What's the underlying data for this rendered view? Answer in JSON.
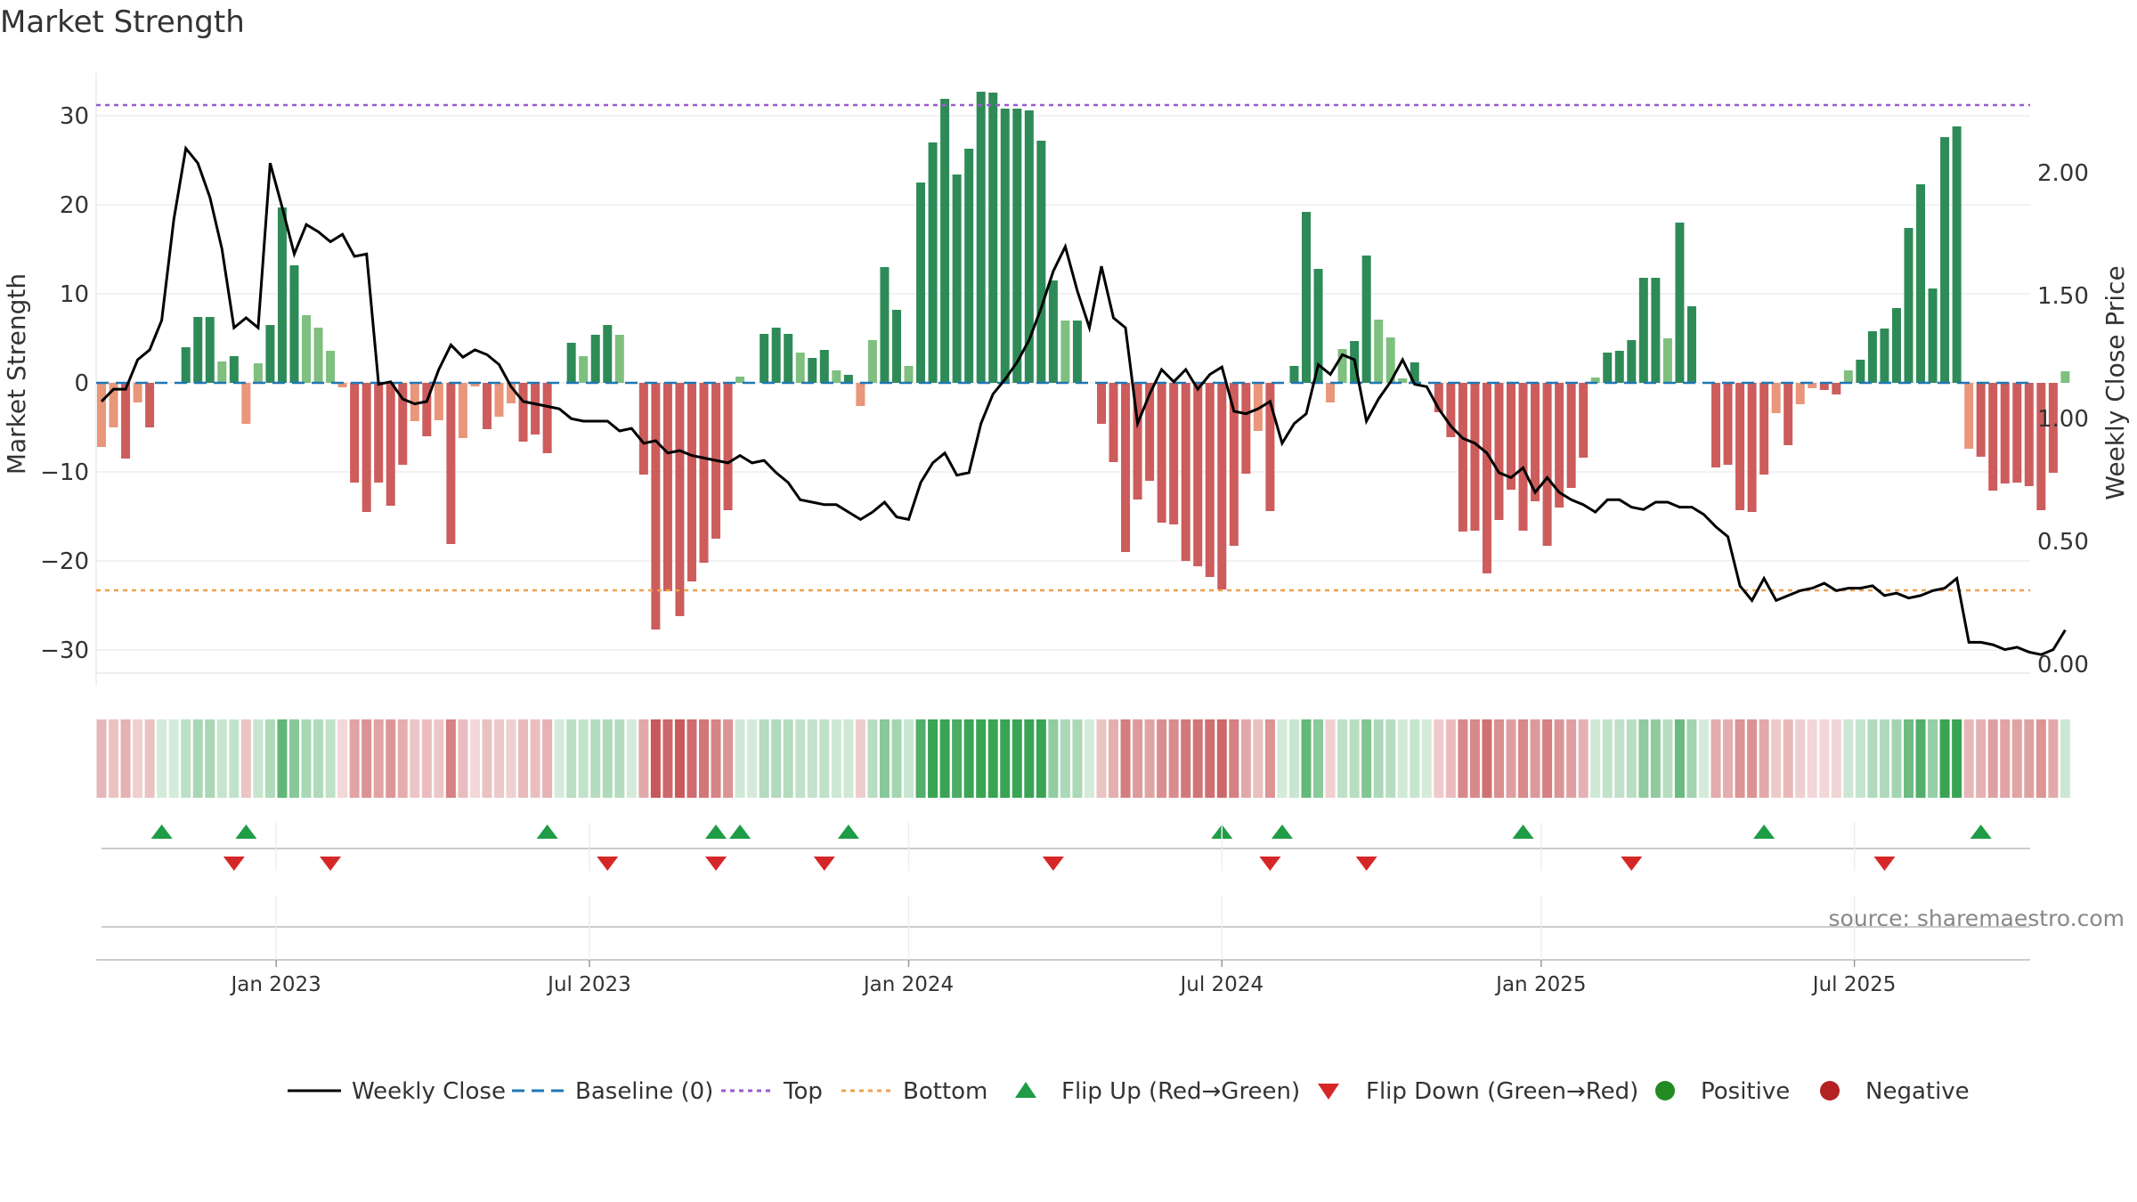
{
  "chart_data": {
    "type": "bar",
    "title": "Market Strength",
    "ylabel_left": "Market Strength",
    "ylabel_right": "Weekly Close Price",
    "left_ylim": [
      -33,
      36
    ],
    "right_ylim": [
      -0.05,
      2.45
    ],
    "left_ticks": [
      30,
      20,
      10,
      0,
      -10,
      -20,
      -30
    ],
    "left_tick_labels": [
      "30",
      "20",
      "10",
      "0",
      "−10",
      "−20",
      "−30"
    ],
    "right_ticks": [
      2.0,
      1.5,
      1.0,
      0.5,
      0.0
    ],
    "right_tick_labels": [
      "2.00",
      "1.50",
      "1.00",
      "0.50",
      "0.00"
    ],
    "x_tick_labels": [
      "Jan 2023",
      "Jul 2023",
      "Jan 2024",
      "Jul 2024",
      "Jan 2025",
      "Jul 2025"
    ],
    "x_tick_weeks": [
      14.5,
      40.5,
      67,
      93,
      119.5,
      145.5
    ],
    "top_level": 31.2,
    "bottom_level": -23.3,
    "strength": [
      -7.2,
      -5,
      -8.5,
      -2.2,
      -5,
      0,
      0,
      4,
      7.4,
      7.4,
      2.4,
      3,
      -4.6,
      2.2,
      6.5,
      19.7,
      13.2,
      7.6,
      6.2,
      3.6,
      -0.5,
      -11.2,
      -14.5,
      -11.2,
      -13.8,
      -9.2,
      -4.3,
      -6,
      -4.2,
      -18.1,
      -6.2,
      -0.4,
      -5.2,
      -3.8,
      -2.3,
      -6.6,
      -5.8,
      -7.9,
      0,
      4.5,
      3,
      5.4,
      6.5,
      5.4,
      0,
      -10.3,
      -27.7,
      -23.4,
      -26.2,
      -22.3,
      -20.2,
      -17.5,
      -14.3,
      0.7,
      0,
      5.5,
      6.2,
      5.5,
      3.4,
      2.8,
      3.7,
      1.4,
      0.9,
      -2.6,
      4.8,
      13,
      8.2,
      1.9,
      22.5,
      27,
      31.9,
      23.4,
      26.3,
      32.7,
      32.6,
      30.8,
      30.8,
      30.6,
      27.2,
      11.5,
      7,
      7,
      0,
      -4.6,
      -8.9,
      -19,
      -13.1,
      -11,
      -15.7,
      -15.9,
      -20,
      -20.6,
      -21.8,
      -23.2,
      -18.3,
      -10.2,
      -5.4,
      -14.4,
      0,
      1.9,
      19.2,
      12.8,
      -2.2,
      3.8,
      4.7,
      14.3,
      7.1,
      5.1,
      0.5,
      2.3,
      0,
      -3.3,
      -6.1,
      -16.7,
      -16.6,
      -21.4,
      -15.4,
      -12,
      -16.6,
      -13.3,
      -18.3,
      -14,
      -11.8,
      -8.4,
      0.6,
      3.4,
      3.6,
      4.8,
      11.8,
      11.8,
      5,
      18,
      8.6,
      0,
      -9.5,
      -9.2,
      -14.3,
      -14.5,
      -10.3,
      -3.4,
      -7,
      -2.4,
      -0.6,
      -0.8,
      -1.3,
      1.4,
      2.6,
      5.8,
      6.1,
      8.4,
      17.4,
      22.3,
      10.6,
      27.6,
      28.8,
      -7.4,
      -8.3,
      -12.1,
      -11.3,
      -11.2,
      -11.6,
      -14.3,
      -10.1,
      1.3
    ],
    "weekly_close": [
      1.07,
      1.12,
      1.12,
      1.24,
      1.28,
      1.4,
      1.81,
      2.1,
      2.04,
      1.9,
      1.69,
      1.37,
      1.41,
      1.37,
      2.04,
      1.86,
      1.67,
      1.79,
      1.76,
      1.72,
      1.75,
      1.66,
      1.67,
      1.14,
      1.15,
      1.08,
      1.06,
      1.07,
      1.2,
      1.3,
      1.25,
      1.28,
      1.26,
      1.22,
      1.13,
      1.07,
      1.06,
      1.05,
      1.04,
      1,
      0.99,
      0.99,
      0.99,
      0.95,
      0.96,
      0.9,
      0.91,
      0.86,
      0.87,
      0.85,
      0.84,
      0.83,
      0.82,
      0.85,
      0.82,
      0.83,
      0.78,
      0.74,
      0.67,
      0.66,
      0.65,
      0.65,
      0.62,
      0.59,
      0.62,
      0.66,
      0.6,
      0.59,
      0.74,
      0.82,
      0.86,
      0.77,
      0.78,
      0.98,
      1.1,
      1.16,
      1.23,
      1.32,
      1.45,
      1.6,
      1.7,
      1.52,
      1.37,
      1.62,
      1.41,
      1.37,
      0.98,
      1.1,
      1.2,
      1.15,
      1.2,
      1.12,
      1.18,
      1.21,
      1.03,
      1.02,
      1.04,
      1.07,
      0.9,
      0.98,
      1.02,
      1.22,
      1.18,
      1.26,
      1.24,
      0.99,
      1.08,
      1.15,
      1.24,
      1.14,
      1.13,
      1.04,
      0.97,
      0.92,
      0.9,
      0.86,
      0.78,
      0.76,
      0.8,
      0.7,
      0.76,
      0.7,
      0.67,
      0.65,
      0.62,
      0.67,
      0.67,
      0.64,
      0.63,
      0.66,
      0.66,
      0.64,
      0.64,
      0.61,
      0.56,
      0.52,
      0.32,
      0.26,
      0.35,
      0.26,
      0.28,
      0.3,
      0.31,
      0.33,
      0.3,
      0.31,
      0.31,
      0.32,
      0.28,
      0.29,
      0.27,
      0.28,
      0.3,
      0.31,
      0.35,
      0.09,
      0.09,
      0.08,
      0.06,
      0.07,
      0.05,
      0.04,
      0.06,
      0.14
    ],
    "flip_up_weeks": [
      5,
      12,
      37,
      51,
      53,
      62,
      93,
      98,
      118,
      138,
      156
    ],
    "flip_down_weeks": [
      11,
      19,
      42,
      51,
      60,
      79,
      97,
      105,
      127,
      148
    ],
    "legend": [
      "Weekly Close",
      "Baseline (0)",
      "Top",
      "Bottom",
      "Flip Up (Red→Green)",
      "Flip Down (Green→Red)",
      "Positive",
      "Negative"
    ],
    "source": "source: sharemaestro.com"
  },
  "colors": {
    "pos_strong": "#2e8b57",
    "pos_weak": "#7fbf7f",
    "neg_strong": "#cd5c5c",
    "neg_weak": "#e9967a",
    "close_line": "#000000",
    "baseline": "#1f77b4",
    "top": "#9b59d0",
    "bottom": "#f0a050",
    "flip_up": "#1e9c46",
    "flip_down": "#d62728",
    "positive_dot": "#228b22",
    "negative_dot": "#b22222"
  }
}
